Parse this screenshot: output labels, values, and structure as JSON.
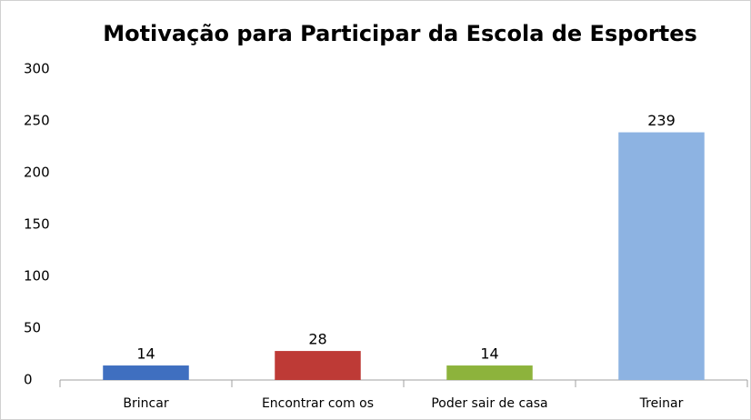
{
  "chart_data": {
    "type": "bar",
    "title": "Motivação para Participar da Escola de Esportes",
    "categories": [
      "Brincar",
      "Encontrar com os",
      "Poder sair de casa",
      "Treinar"
    ],
    "values": [
      14,
      28,
      14,
      239
    ],
    "colors": [
      "#3f6fc0",
      "#be3a36",
      "#8db33c",
      "#8db3e2"
    ],
    "ylim": [
      0,
      300
    ],
    "yticks": [
      0,
      50,
      100,
      150,
      200,
      250,
      300
    ],
    "grid": false
  }
}
